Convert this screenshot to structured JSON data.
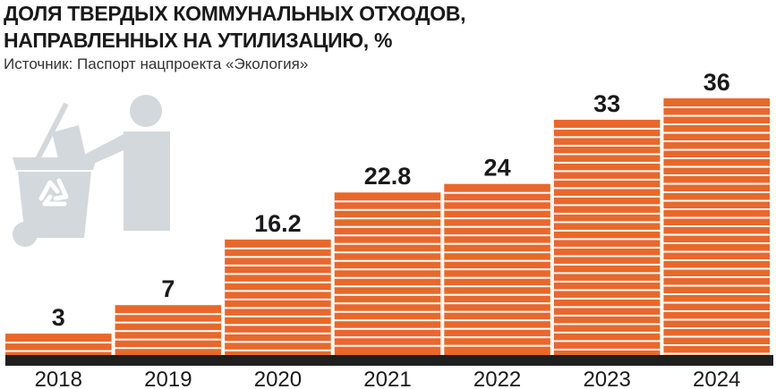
{
  "title_lines": [
    "ДОЛЯ ТВЕРДЫХ КОММУНАЛЬНЫХ ОТХОДОВ,",
    "НАПРАВЛЕННЫХ НА УТИЛИЗАЦИЮ, %"
  ],
  "source": "Источник: Паспорт нацпроекта «Экология»",
  "colors": {
    "bar": "#e8682c",
    "bar_stripe": "#ffffff",
    "baseline": "#1f1f1f",
    "icon": "#d3d8dc",
    "recycle": "#ffffff"
  },
  "icon": "recycling-bin-person-icon",
  "chart_data": {
    "type": "bar",
    "title": "ДОЛЯ ТВЕРДЫХ КОММУНАЛЬНЫХ ОТХОДОВ, НАПРАВЛЕННЫХ НА УТИЛИЗАЦИЮ, %",
    "categories": [
      "2018",
      "2019",
      "2020",
      "2021",
      "2022",
      "2023",
      "2024"
    ],
    "values": [
      3,
      7,
      16.2,
      22.8,
      24,
      33,
      36
    ],
    "value_labels": [
      "3",
      "7",
      "16.2",
      "22.8",
      "24",
      "33",
      "36"
    ],
    "ylim": [
      0,
      36
    ],
    "grid": false,
    "legend": "none"
  }
}
